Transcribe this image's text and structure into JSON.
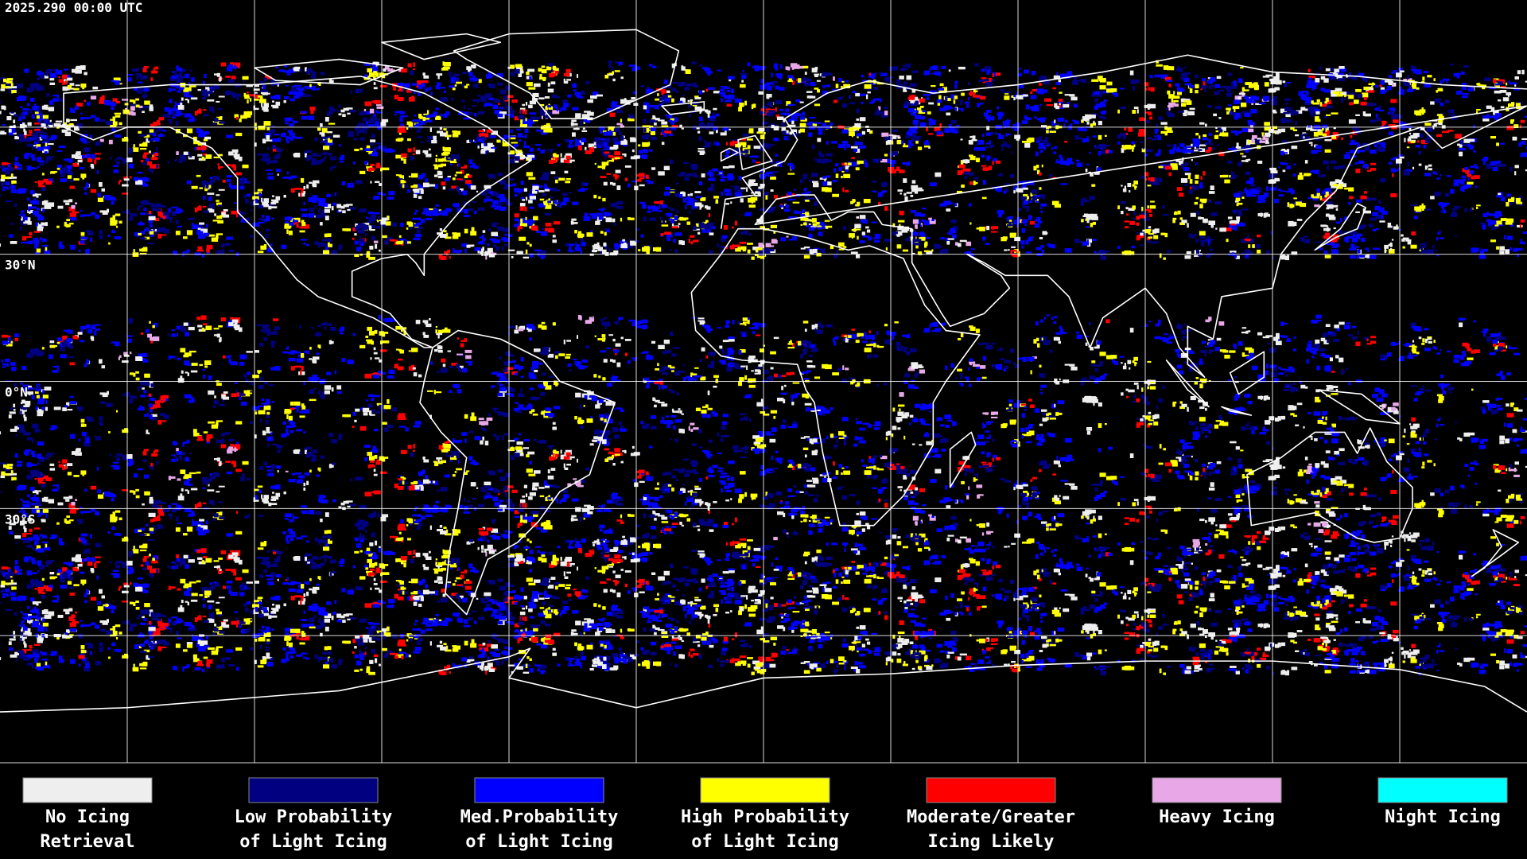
{
  "header": {
    "title": "2025.290 00:00 UTC"
  },
  "lat_labels": [
    "30°N",
    "0°N",
    "30°S"
  ],
  "legend": [
    {
      "lines": [
        "No Icing",
        "Retrieval"
      ],
      "color": "#eeeeee"
    },
    {
      "lines": [
        "Low Probability",
        "of Light Icing"
      ],
      "color": "#000080"
    },
    {
      "lines": [
        "Med.Probability",
        "of Light Icing"
      ],
      "color": "#0000ff"
    },
    {
      "lines": [
        "High Probability",
        "of Light Icing"
      ],
      "color": "#ffff00"
    },
    {
      "lines": [
        "Moderate/Greater",
        "Icing Likely"
      ],
      "color": "#ff0000"
    },
    {
      "lines": [
        "Heavy Icing"
      ],
      "color": "#e8a8e8"
    },
    {
      "lines": [
        "Night Icing"
      ],
      "color": "#00ffff"
    }
  ]
}
